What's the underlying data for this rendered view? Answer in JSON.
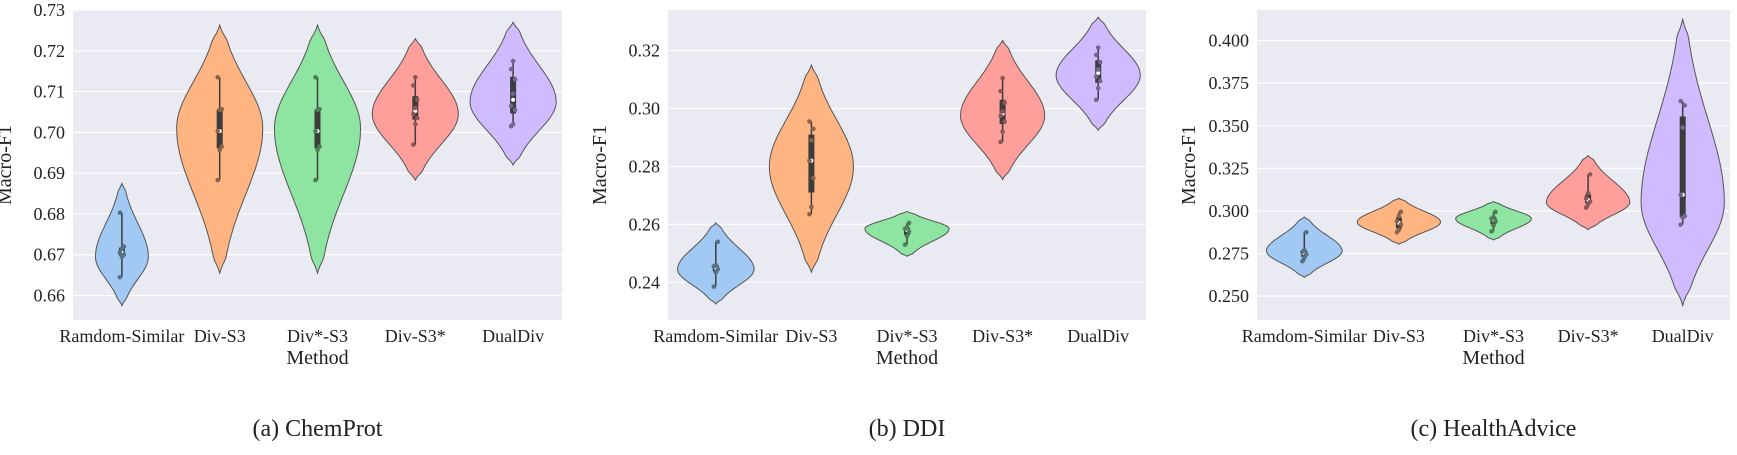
{
  "chart_data": [
    {
      "type": "violin",
      "caption": "(a) ChemProt",
      "xlabel": "Method",
      "ylabel": "Macro-F1",
      "ylim": [
        0.654,
        0.73
      ],
      "yticks": [
        "0.66",
        "0.67",
        "0.68",
        "0.69",
        "0.70",
        "0.71",
        "0.72",
        "0.73"
      ],
      "ytick_values": [
        0.66,
        0.67,
        0.68,
        0.69,
        0.7,
        0.71,
        0.72,
        0.73
      ],
      "grid": true,
      "categories": [
        "Ramdom-Similar",
        "Div-S3",
        "Div*-S3",
        "Div-S3*",
        "DualDiv"
      ],
      "colors": [
        "#a1c9f4",
        "#ffb482",
        "#8de5a1",
        "#ff9f9b",
        "#d0bbff"
      ],
      "violins": [
        {
          "ymin": 0.6575,
          "ymax": 0.6875,
          "maxw": 0.27,
          "peak": 0.6695,
          "points": [
            0.6645,
            0.6695,
            0.67,
            0.6705,
            0.6715,
            0.672,
            0.6803
          ]
        },
        {
          "ymin": 0.6655,
          "ymax": 0.7263,
          "maxw": 0.44,
          "peak": 0.701,
          "points": [
            0.6883,
            0.6957,
            0.6965,
            0.7003,
            0.7055,
            0.7057,
            0.7135
          ]
        },
        {
          "ymin": 0.6655,
          "ymax": 0.7263,
          "maxw": 0.44,
          "peak": 0.701,
          "points": [
            0.6883,
            0.6957,
            0.6965,
            0.7003,
            0.7055,
            0.7057,
            0.7135
          ]
        },
        {
          "ymin": 0.6883,
          "ymax": 0.723,
          "maxw": 0.44,
          "peak": 0.7045,
          "points": [
            0.697,
            0.702,
            0.7035,
            0.7045,
            0.706,
            0.708,
            0.7115,
            0.7135
          ]
        },
        {
          "ymin": 0.692,
          "ymax": 0.727,
          "maxw": 0.44,
          "peak": 0.7075,
          "points": [
            0.7015,
            0.702,
            0.7055,
            0.7065,
            0.7095,
            0.713,
            0.7155,
            0.7175
          ]
        }
      ]
    },
    {
      "type": "violin",
      "caption": "(b) DDI",
      "xlabel": "Method",
      "ylabel": "Macro-F1",
      "ylim": [
        0.227,
        0.334
      ],
      "yticks": [
        "0.24",
        "0.26",
        "0.28",
        "0.30",
        "0.32"
      ],
      "ytick_values": [
        0.24,
        0.26,
        0.28,
        0.3,
        0.32
      ],
      "grid": true,
      "categories": [
        "Ramdom-Similar",
        "Div-S3",
        "Div*-S3",
        "Div-S3*",
        "DualDiv"
      ],
      "colors": [
        "#a1c9f4",
        "#ffb482",
        "#8de5a1",
        "#ff9f9b",
        "#d0bbff"
      ],
      "violins": [
        {
          "ymin": 0.2325,
          "ymax": 0.2605,
          "maxw": 0.4,
          "peak": 0.2445,
          "points": [
            0.2385,
            0.2435,
            0.2445,
            0.2455,
            0.246,
            0.254
          ]
        },
        {
          "ymin": 0.2435,
          "ymax": 0.315,
          "maxw": 0.44,
          "peak": 0.28,
          "points": [
            0.2635,
            0.266,
            0.276,
            0.282,
            0.289,
            0.293,
            0.2955
          ]
        },
        {
          "ymin": 0.249,
          "ymax": 0.2645,
          "maxw": 0.44,
          "peak": 0.2585,
          "points": [
            0.253,
            0.256,
            0.2575,
            0.2585,
            0.259,
            0.2605
          ]
        },
        {
          "ymin": 0.2755,
          "ymax": 0.3235,
          "maxw": 0.44,
          "peak": 0.2975,
          "points": [
            0.2885,
            0.292,
            0.2955,
            0.2975,
            0.299,
            0.302,
            0.306,
            0.3105
          ]
        },
        {
          "ymin": 0.2925,
          "ymax": 0.3315,
          "maxw": 0.44,
          "peak": 0.3115,
          "points": [
            0.303,
            0.307,
            0.3095,
            0.311,
            0.3135,
            0.316,
            0.3185,
            0.321
          ]
        }
      ]
    },
    {
      "type": "violin",
      "caption": "(c) HealthAdvice",
      "xlabel": "Method",
      "ylabel": "Macro-F1",
      "ylim": [
        0.236,
        0.418
      ],
      "yticks": [
        "0.250",
        "0.275",
        "0.300",
        "0.325",
        "0.350",
        "0.375",
        "0.400"
      ],
      "ytick_values": [
        0.25,
        0.275,
        0.3,
        0.325,
        0.35,
        0.375,
        0.4
      ],
      "grid": true,
      "categories": [
        "Ramdom-Similar",
        "Div-S3",
        "Div*-S3",
        "Div-S3*",
        "DualDiv"
      ],
      "colors": [
        "#a1c9f4",
        "#ffb482",
        "#8de5a1",
        "#ff9f9b",
        "#d0bbff"
      ],
      "violins": [
        {
          "ymin": 0.261,
          "ymax": 0.2965,
          "maxw": 0.4,
          "peak": 0.2765,
          "points": [
            0.2705,
            0.2725,
            0.2745,
            0.276,
            0.277,
            0.2875
          ]
        },
        {
          "ymin": 0.2805,
          "ymax": 0.3075,
          "maxw": 0.44,
          "peak": 0.2935,
          "points": [
            0.2875,
            0.289,
            0.292,
            0.294,
            0.297,
            0.2995
          ]
        },
        {
          "ymin": 0.283,
          "ymax": 0.3055,
          "maxw": 0.4,
          "peak": 0.2955,
          "points": [
            0.288,
            0.2915,
            0.294,
            0.2955,
            0.2965,
            0.2995
          ]
        },
        {
          "ymin": 0.289,
          "ymax": 0.3325,
          "maxw": 0.44,
          "peak": 0.305,
          "points": [
            0.302,
            0.304,
            0.3055,
            0.3075,
            0.3105,
            0.3215
          ]
        },
        {
          "ymin": 0.2445,
          "ymax": 0.4125,
          "maxw": 0.44,
          "peak": 0.305,
          "points": [
            0.292,
            0.296,
            0.297,
            0.3095,
            0.349,
            0.362,
            0.3645
          ]
        }
      ]
    }
  ]
}
